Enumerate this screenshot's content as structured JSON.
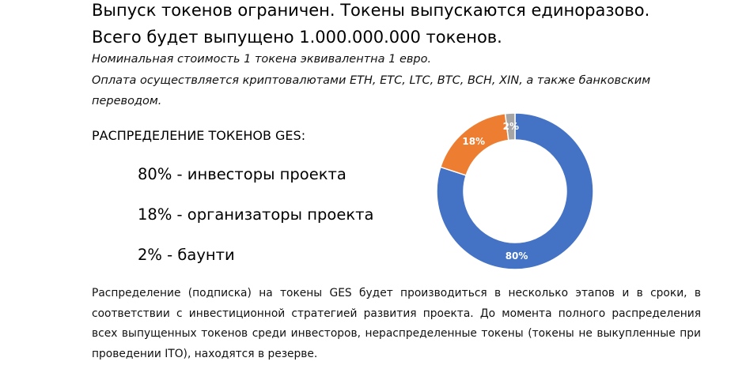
{
  "headlines": [
    "Выпуск токенов ограничен. Токены выпускаются единоразово.",
    "Всего будет выпущено 1.000.000.000 токенов."
  ],
  "notes": [
    "Номинальная стоимость 1 токена эквивалентна 1 евро.",
    "Оплата осуществляется криптовалютами ETH, ETC, LTC, BTC, BCH, XIN, а также банковским",
    "переводом."
  ],
  "distribution": {
    "heading": "РАСПРЕДЕЛЕНИЕ ТОКЕНОВ GES:",
    "items": [
      "80% - инвесторы проекта",
      "18% - организаторы проекта",
      "2% - баунти"
    ]
  },
  "body_paragraph": "Распределение (подписка) на токены GES будет производиться в несколько этапов и в сроки, в соответствии с инвестиционной стратегией развития проекта. До момента полного распределения всех выпущенных токенов среди инвесторов, нераспределенные токены (токены не выкупленные при проведении ITO), находятся в резерве.",
  "chart_data": {
    "type": "pie",
    "style": "donut",
    "categories": [
      "инвесторы проекта",
      "организаторы проекта",
      "баунти"
    ],
    "values": [
      80,
      18,
      2
    ],
    "data_labels": [
      "80%",
      "18%",
      "2%"
    ],
    "colors": [
      "#4472C4",
      "#ED7D31",
      "#A5A5A5"
    ],
    "start": "top",
    "direction": "clockwise",
    "title": "",
    "legend": "none"
  }
}
